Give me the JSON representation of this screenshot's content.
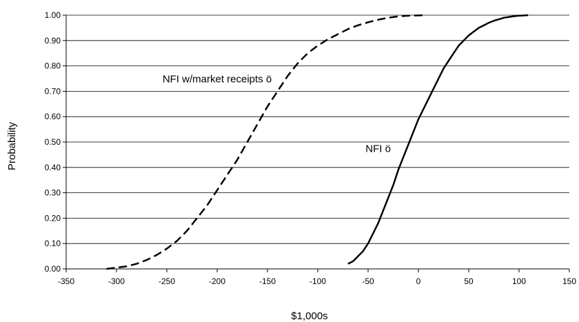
{
  "chart_data": {
    "type": "line",
    "title": "",
    "xlabel": "$1,000s",
    "ylabel": "Probability",
    "xlim": [
      -350,
      150
    ],
    "ylim": [
      0,
      1
    ],
    "x_ticks": [
      "-350",
      "-300",
      "-250",
      "-200",
      "-150",
      "-100",
      "-50",
      "0",
      "50",
      "100",
      "150"
    ],
    "y_ticks": [
      "0.00",
      "0.10",
      "0.20",
      "0.30",
      "0.40",
      "0.50",
      "0.60",
      "0.70",
      "0.80",
      "0.90",
      "1.00"
    ],
    "grid": "horizontal",
    "series": [
      {
        "name": "NFI w/market receipts",
        "style": "dashed",
        "color": "#000000",
        "x": [
          -310,
          -300,
          -290,
          -280,
          -270,
          -260,
          -250,
          -240,
          -230,
          -220,
          -210,
          -200,
          -190,
          -180,
          -170,
          -160,
          -150,
          -140,
          -130,
          -120,
          -110,
          -100,
          -90,
          -80,
          -70,
          -60,
          -50,
          -40,
          -30,
          -20,
          -10,
          0,
          7
        ],
        "y": [
          0.0,
          0.005,
          0.01,
          0.02,
          0.035,
          0.055,
          0.08,
          0.11,
          0.15,
          0.2,
          0.25,
          0.31,
          0.37,
          0.43,
          0.5,
          0.57,
          0.64,
          0.7,
          0.76,
          0.81,
          0.85,
          0.88,
          0.905,
          0.925,
          0.945,
          0.96,
          0.972,
          0.982,
          0.99,
          0.995,
          0.998,
          0.999,
          1.0
        ]
      },
      {
        "name": "NFI",
        "style": "solid",
        "color": "#000000",
        "x": [
          -70,
          -65,
          -60,
          -55,
          -50,
          -45,
          -40,
          -35,
          -30,
          -25,
          -20,
          -15,
          -10,
          -5,
          0,
          5,
          10,
          15,
          20,
          25,
          30,
          35,
          40,
          45,
          50,
          55,
          60,
          65,
          70,
          75,
          80,
          85,
          90,
          95,
          100,
          105,
          109
        ],
        "y": [
          0.02,
          0.03,
          0.05,
          0.07,
          0.1,
          0.14,
          0.18,
          0.23,
          0.28,
          0.33,
          0.39,
          0.44,
          0.49,
          0.54,
          0.59,
          0.63,
          0.67,
          0.71,
          0.75,
          0.79,
          0.82,
          0.85,
          0.88,
          0.9,
          0.92,
          0.935,
          0.95,
          0.96,
          0.97,
          0.978,
          0.984,
          0.99,
          0.993,
          0.996,
          0.998,
          0.999,
          1.0
        ]
      }
    ],
    "annotations": [
      {
        "text": "NFI w/market receipts  ö",
        "x": -200,
        "y": 0.735
      },
      {
        "text": "NFI  ö",
        "x": -40,
        "y": 0.46
      }
    ]
  }
}
